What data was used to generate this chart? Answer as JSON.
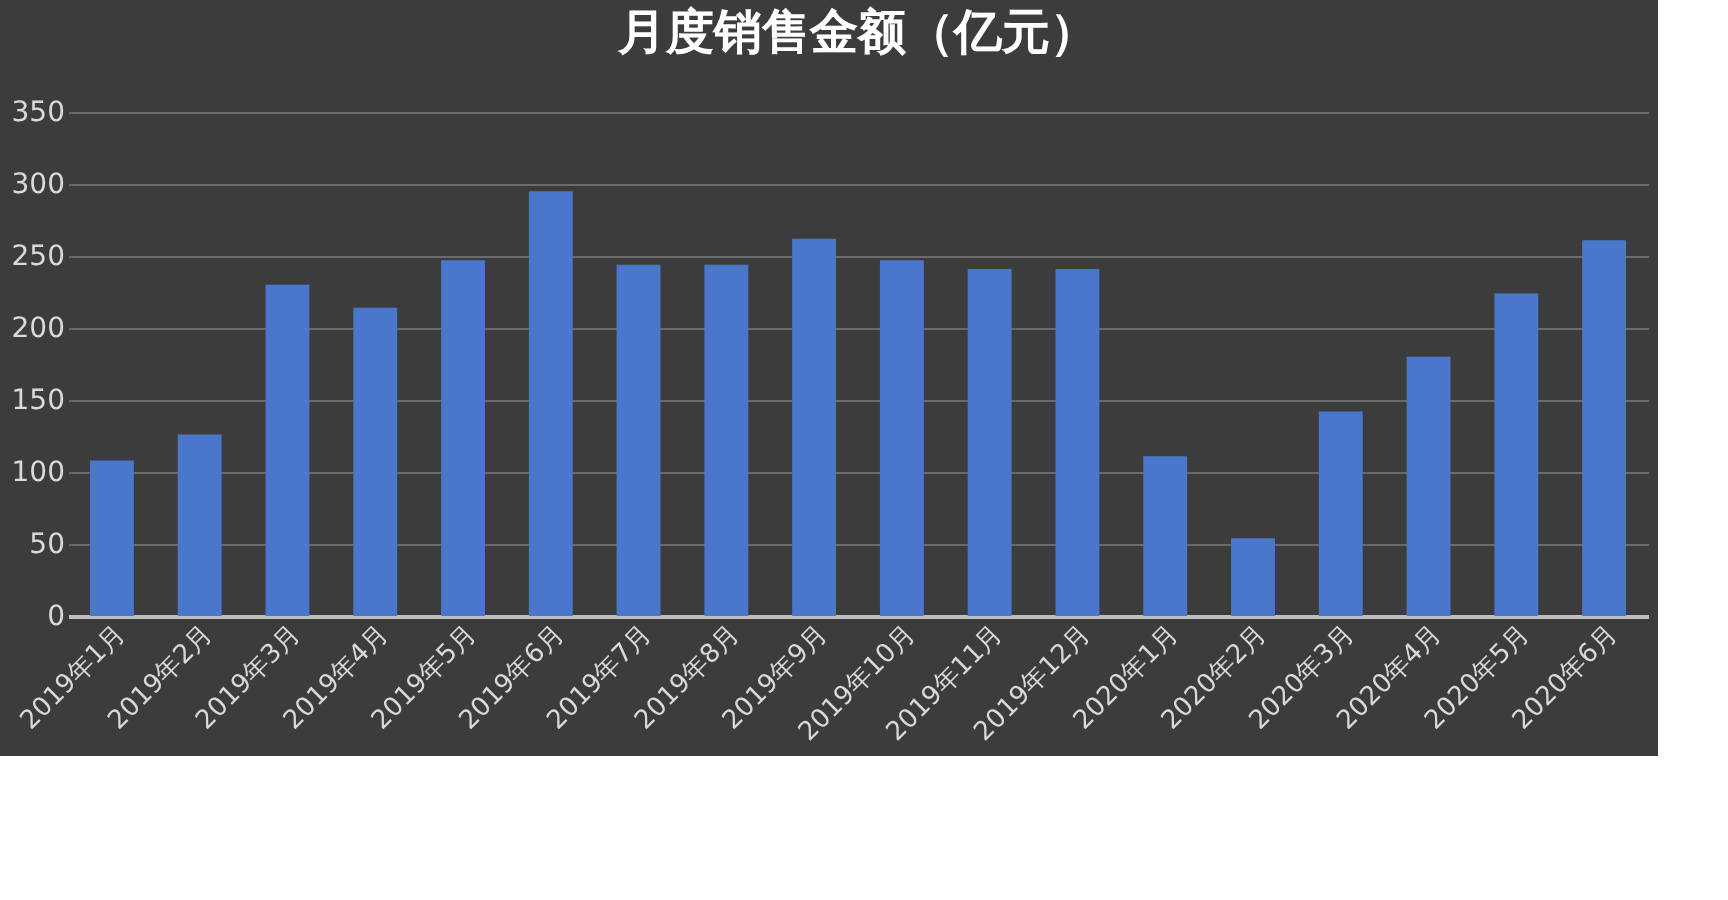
{
  "chart_data": {
    "type": "bar",
    "title": "月度销售金额（亿元）",
    "categories": [
      "2019年1月",
      "2019年2月",
      "2019年3月",
      "2019年4月",
      "2019年5月",
      "2019年6月",
      "2019年7月",
      "2019年8月",
      "2019年9月",
      "2019年10月",
      "2019年11月",
      "2019年12月",
      "2020年1月",
      "2020年2月",
      "2020年3月",
      "2020年4月",
      "2020年5月",
      "2020年6月"
    ],
    "values": [
      108,
      126,
      230,
      214,
      247,
      295,
      244,
      244,
      262,
      247,
      241,
      241,
      111,
      54,
      142,
      180,
      224,
      261
    ],
    "color": "#4a77cc",
    "ylim": [
      0,
      350
    ],
    "yticks": [
      0,
      50,
      100,
      150,
      200,
      250,
      300,
      350
    ],
    "grid": "y"
  }
}
